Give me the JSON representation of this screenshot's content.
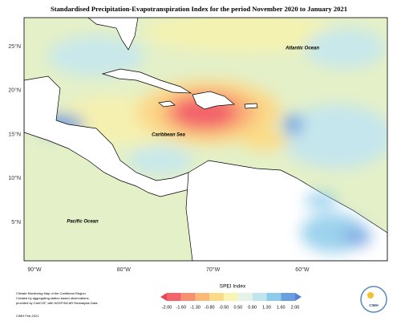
{
  "title": "Standardised Precipitation-Evapotranspiration Index for the period November 2020 to January 2021",
  "lat_labels": [
    "25°N",
    "20°N",
    "15°N",
    "10°N",
    "5°N"
  ],
  "lon_labels": [
    "90°W",
    "80°W",
    "70°W",
    "60°W"
  ],
  "places": [
    "Atlantic Ocean",
    "Caribbean Sea",
    "Pacific Ocean"
  ],
  "legend": {
    "title": "SPEI Index",
    "labels": [
      "-2.00",
      "-1.60",
      "-1.30",
      "-0.80",
      "-0.50",
      "0.50",
      "0.80",
      "1.30",
      "1.60",
      "2.00"
    ],
    "colors": [
      "#f3636b",
      "#f7906e",
      "#fab978",
      "#fbdc86",
      "#f8f5b4",
      "#e6f3e6",
      "#bfe6ee",
      "#8ccbea",
      "#6a9fe0"
    ]
  },
  "notes": [
    "Climate Monitoring Map of the Caribbean Region.",
    "Created by aggregating station based observations,",
    "provided by CariCOF, with NCEP/NCAR Reanalysis Data."
  ],
  "credit": "CIMH Feb-2021",
  "logo": "CIMH"
}
